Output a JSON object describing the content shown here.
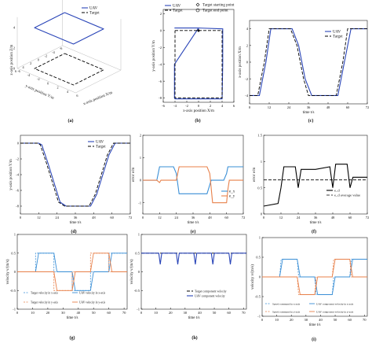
{
  "colors": {
    "uav": "#2a45b8",
    "target": "#000000",
    "orange": "#e8804a",
    "blue2": "#3a8fd6",
    "black": "#000000"
  },
  "panels": {
    "a": "(a)",
    "b": "(b)",
    "c": "(c)",
    "d": "(d)",
    "e": "(e)",
    "f": "(f)",
    "g": "(g)",
    "h": "(h)",
    "i": "(i)"
  },
  "chart_data": [
    {
      "id": "a",
      "type": "line",
      "x_label": "x-axis position X/m",
      "y_label": "y-axis position Y/m",
      "z_label": "z-axis position Z/m",
      "x_ticks": [
        "-6",
        "-4",
        "-2",
        "0",
        "2",
        "4",
        "6"
      ],
      "y_ticks": [
        "-6",
        "-4",
        "-2",
        "0",
        "2",
        "4",
        "6"
      ],
      "z_ticks": [
        "0",
        "2",
        "4"
      ],
      "legend": [
        "UAV",
        "Target"
      ],
      "series": [
        {
          "name": "UAV",
          "z": 4,
          "path_xy": [
            [
              -4,
              -4
            ],
            [
              4,
              -4
            ],
            [
              4,
              4
            ],
            [
              -4,
              4
            ],
            [
              -4,
              -4
            ]
          ]
        },
        {
          "name": "Target",
          "z": 0,
          "path_xy": [
            [
              -4,
              -4
            ],
            [
              4,
              -4
            ],
            [
              4,
              4
            ],
            [
              -4,
              4
            ],
            [
              -4,
              -4
            ]
          ]
        }
      ]
    },
    {
      "id": "b",
      "type": "line",
      "xlabel": "x-axis position X/m",
      "ylabel": "y-axis position Y/m",
      "x_ticks": [
        "-6",
        "-4",
        "-2",
        "0",
        "2",
        "4",
        "6"
      ],
      "y_ticks": [
        "-8",
        "-6",
        "-4",
        "-2",
        "0",
        "2"
      ],
      "xlim": [
        -6,
        6
      ],
      "ylim": [
        -8.5,
        2.5
      ],
      "legend": [
        "UAV",
        "Target",
        "Target starting point",
        "Target end point"
      ],
      "series": [
        {
          "name": "UAV",
          "x": [
            -4.1,
            0,
            4.1,
            4.1,
            4,
            -4,
            -4.1,
            -4.1,
            0
          ],
          "y": [
            0.3,
            0.3,
            0.2,
            -4,
            -8.1,
            -8.1,
            -8,
            -4,
            0.3
          ]
        },
        {
          "name": "Target",
          "x": [
            -4,
            4,
            4,
            -4,
            -4
          ],
          "y": [
            0,
            0,
            -8,
            -8,
            0
          ]
        }
      ],
      "points": [
        {
          "name": "Target starting point",
          "x": 0,
          "y": 0
        },
        {
          "name": "Target end point",
          "x": 0,
          "y": 0
        }
      ]
    },
    {
      "id": "c",
      "type": "line",
      "xlabel": "time t/s",
      "ylabel": "x-axis position X/m",
      "x_ticks": [
        "0",
        "12",
        "24",
        "36",
        "48",
        "60",
        "72"
      ],
      "y_ticks": [
        "-4",
        "-2",
        "0",
        "2",
        "4"
      ],
      "xlim": [
        0,
        72
      ],
      "ylim": [
        -5,
        5
      ],
      "legend": [
        "UAV",
        "Target"
      ],
      "series": [
        {
          "name": "UAV",
          "x": [
            0,
            2,
            6,
            10,
            13,
            24,
            26,
            30,
            34,
            38,
            48,
            50,
            54,
            58,
            62,
            70,
            72
          ],
          "y": [
            -4,
            -4,
            -4,
            0,
            4,
            4,
            4,
            2,
            -2,
            -4,
            -4,
            -4,
            -4,
            0,
            4,
            4,
            4
          ]
        },
        {
          "name": "Target",
          "x": [
            0,
            1,
            5,
            9,
            12,
            23,
            25,
            29,
            33,
            36,
            47,
            49,
            53,
            57,
            60,
            70,
            72
          ],
          "y": [
            -4,
            -4,
            -4,
            0,
            4,
            4,
            4,
            2,
            -2,
            -4,
            -4,
            -4,
            -4,
            0,
            4,
            4,
            4
          ]
        }
      ]
    },
    {
      "id": "d",
      "type": "line",
      "xlabel": "time t/s",
      "ylabel": "y-axis position Y/m",
      "x_ticks": [
        "0",
        "12",
        "24",
        "36",
        "48",
        "60",
        "72"
      ],
      "y_ticks": [
        "-8",
        "-6",
        "-4",
        "-2",
        "0"
      ],
      "xlim": [
        0,
        72
      ],
      "ylim": [
        -9,
        1
      ],
      "legend": [
        "UAV",
        "Target"
      ],
      "series": [
        {
          "name": "UAV",
          "x": [
            0,
            12,
            14,
            18,
            22,
            26,
            30,
            46,
            50,
            54,
            58,
            62,
            72
          ],
          "y": [
            0,
            0,
            -0.2,
            -2.5,
            -5,
            -7.5,
            -8,
            -8,
            -6.5,
            -4,
            -1.5,
            0,
            0
          ]
        },
        {
          "name": "Target",
          "x": [
            0,
            11,
            13,
            17,
            21,
            25,
            29,
            45,
            49,
            53,
            57,
            61,
            72
          ],
          "y": [
            0,
            0,
            -0.2,
            -2.5,
            -5,
            -7.5,
            -8,
            -8,
            -6.5,
            -4,
            -1.5,
            0,
            0
          ]
        }
      ]
    },
    {
      "id": "e",
      "type": "line",
      "xlabel": "time t/s",
      "ylabel": "error e/m",
      "x_ticks": [
        "0",
        "12",
        "24",
        "36",
        "48",
        "60",
        "72"
      ],
      "y_ticks": [
        "-1",
        "0",
        "1",
        "2"
      ],
      "xlim": [
        0,
        72
      ],
      "ylim": [
        -1.5,
        2
      ],
      "legend": [
        "e_x",
        "e_y"
      ],
      "series": [
        {
          "name": "e_x",
          "x": [
            0,
            10,
            11,
            12,
            22,
            24,
            26,
            36,
            46,
            48,
            49,
            58,
            60,
            61,
            72
          ],
          "y": [
            0,
            0,
            0.3,
            0.6,
            0.6,
            0.3,
            -0.6,
            -0.6,
            -0.6,
            -0.2,
            0,
            0,
            0.3,
            0.6,
            0.6
          ]
        },
        {
          "name": "e_y",
          "x": [
            0,
            10,
            12,
            13,
            24,
            25,
            26,
            36,
            46,
            48,
            50,
            60,
            61,
            62,
            72
          ],
          "y": [
            0,
            0,
            -0.1,
            0,
            0,
            0.3,
            0.6,
            0.6,
            0.6,
            0.3,
            -1,
            -1,
            -0.4,
            0,
            0
          ]
        }
      ]
    },
    {
      "id": "f",
      "type": "line",
      "xlabel": "time t/s",
      "ylabel": "error e/m",
      "x_ticks": [
        "0",
        "12",
        "24",
        "36",
        "48",
        "60",
        "72"
      ],
      "y_ticks": [
        "0",
        "0.5",
        "1",
        "1.5"
      ],
      "xlim": [
        0,
        72
      ],
      "ylim": [
        0,
        1.5
      ],
      "legend": [
        "e_d",
        "e_d average value"
      ],
      "series": [
        {
          "name": "e_d",
          "x": [
            0,
            10,
            12,
            14,
            22,
            24,
            26,
            36,
            46,
            48,
            50,
            58,
            60,
            62,
            72
          ],
          "y": [
            0.15,
            0.2,
            0.5,
            0.9,
            0.9,
            0.5,
            0.85,
            0.85,
            0.9,
            0.5,
            0.95,
            0.95,
            0.5,
            0.7,
            0.7
          ]
        },
        {
          "name": "e_d average value",
          "x": [
            0,
            72
          ],
          "y": [
            0.65,
            0.65
          ]
        }
      ]
    },
    {
      "id": "g",
      "type": "line",
      "xlabel": "time t/s",
      "ylabel": "velocity v/(m/s)",
      "x_ticks": [
        "0",
        "10",
        "20",
        "30",
        "40",
        "50",
        "60",
        "70"
      ],
      "y_ticks": [
        "-1",
        "-0.5",
        "0",
        "0.5",
        "1"
      ],
      "xlim": [
        0,
        72
      ],
      "ylim": [
        -1,
        1
      ],
      "legend": [
        "Target velocity in x-axis",
        "UAV velocity in x-axis",
        "Target velocity in y-axis",
        "UAV velocity in y-axis"
      ],
      "series": [
        {
          "name": "Target velocity in x-axis",
          "x": [
            0,
            12,
            12,
            24,
            24,
            36,
            36,
            48,
            48,
            60,
            60,
            72
          ],
          "y": [
            0,
            0,
            0.5,
            0.5,
            0,
            0,
            -0.5,
            -0.5,
            0,
            0,
            0.5,
            0.5
          ]
        },
        {
          "name": "UAV velocity in x-axis",
          "x": [
            0,
            12,
            14,
            24,
            26,
            36,
            38,
            48,
            50,
            60,
            62,
            72
          ],
          "y": [
            0,
            0,
            0.5,
            0.5,
            0,
            0,
            -0.5,
            -0.5,
            0,
            0,
            0.5,
            0.5
          ]
        },
        {
          "name": "Target velocity in y-axis",
          "x": [
            0,
            12,
            12,
            24,
            24,
            36,
            36,
            48,
            48,
            60,
            60,
            72
          ],
          "y": [
            0,
            0,
            0,
            0,
            -0.5,
            -0.5,
            0,
            0,
            0.5,
            0.5,
            0,
            0
          ]
        },
        {
          "name": "UAV velocity in y-axis",
          "x": [
            0,
            12,
            14,
            24,
            26,
            36,
            38,
            48,
            50,
            60,
            62,
            72
          ],
          "y": [
            0,
            0,
            0,
            0,
            -0.5,
            -0.5,
            0,
            0,
            0.5,
            0.5,
            0,
            0
          ]
        }
      ]
    },
    {
      "id": "h",
      "type": "line",
      "xlabel": "time t/s",
      "ylabel": "velocity v/(m/s)",
      "x_ticks": [
        "0",
        "10",
        "20",
        "30",
        "40",
        "50",
        "60",
        "70"
      ],
      "y_ticks": [
        "-1",
        "-0.5",
        "0",
        "0.5",
        "1"
      ],
      "xlim": [
        0,
        72
      ],
      "ylim": [
        -1,
        1
      ],
      "legend": [
        "Target component velocity",
        "UAV component velocity"
      ],
      "series": [
        {
          "name": "Target component velocity",
          "x": [
            0,
            72
          ],
          "y": [
            0.5,
            0.5
          ]
        },
        {
          "name": "UAV component velocity",
          "x": [
            0,
            12,
            13,
            14,
            24,
            25,
            26,
            36,
            37,
            38,
            48,
            49,
            50,
            60,
            61,
            62,
            72
          ],
          "y": [
            0.5,
            0.5,
            0.2,
            0.5,
            0.5,
            0.2,
            0.5,
            0.5,
            0.2,
            0.5,
            0.5,
            0.2,
            0.5,
            0.5,
            0.2,
            0.5,
            0.5
          ]
        }
      ]
    },
    {
      "id": "i",
      "type": "line",
      "xlabel": "time t/s",
      "ylabel": "velocity v/(m/s)",
      "x_ticks": [
        "0",
        "10",
        "20",
        "30",
        "40",
        "50",
        "60",
        "70"
      ],
      "y_ticks": [
        "-1",
        "-0.5",
        "0",
        "0.5",
        "1"
      ],
      "xlim": [
        0,
        72
      ],
      "ylim": [
        -1,
        1
      ],
      "legend": [
        "Speed command in x-axis",
        "UAV component velocity in x-axis",
        "Speed command in y-axis",
        "UAV component velocity in y-axis"
      ],
      "series": [
        {
          "name": "Speed command in x-axis",
          "x": [
            0,
            12,
            13,
            24,
            25,
            36,
            37,
            48,
            49,
            60,
            61,
            72
          ],
          "y": [
            0,
            0,
            0.45,
            0.45,
            0,
            0,
            -0.45,
            -0.45,
            0,
            0,
            0.45,
            0.45
          ]
        },
        {
          "name": "UAV component velocity in x-axis",
          "x": [
            0,
            12,
            14,
            24,
            26,
            36,
            38,
            48,
            50,
            60,
            62,
            72
          ],
          "y": [
            0,
            0,
            0.45,
            0.45,
            0,
            0,
            -0.45,
            -0.45,
            0,
            0,
            0.45,
            0.45
          ]
        },
        {
          "name": "Speed command in y-axis",
          "x": [
            0,
            12,
            13,
            24,
            25,
            36,
            37,
            48,
            49,
            60,
            61,
            72
          ],
          "y": [
            0,
            0,
            0,
            0,
            -0.45,
            -0.45,
            0,
            0,
            0.45,
            0.45,
            0,
            0
          ]
        },
        {
          "name": "UAV component velocity in y-axis",
          "x": [
            0,
            12,
            14,
            24,
            26,
            36,
            38,
            48,
            50,
            60,
            62,
            72
          ],
          "y": [
            0,
            0,
            0,
            0,
            -0.45,
            -0.45,
            0,
            0,
            0.45,
            0.45,
            0,
            0
          ]
        }
      ]
    }
  ]
}
